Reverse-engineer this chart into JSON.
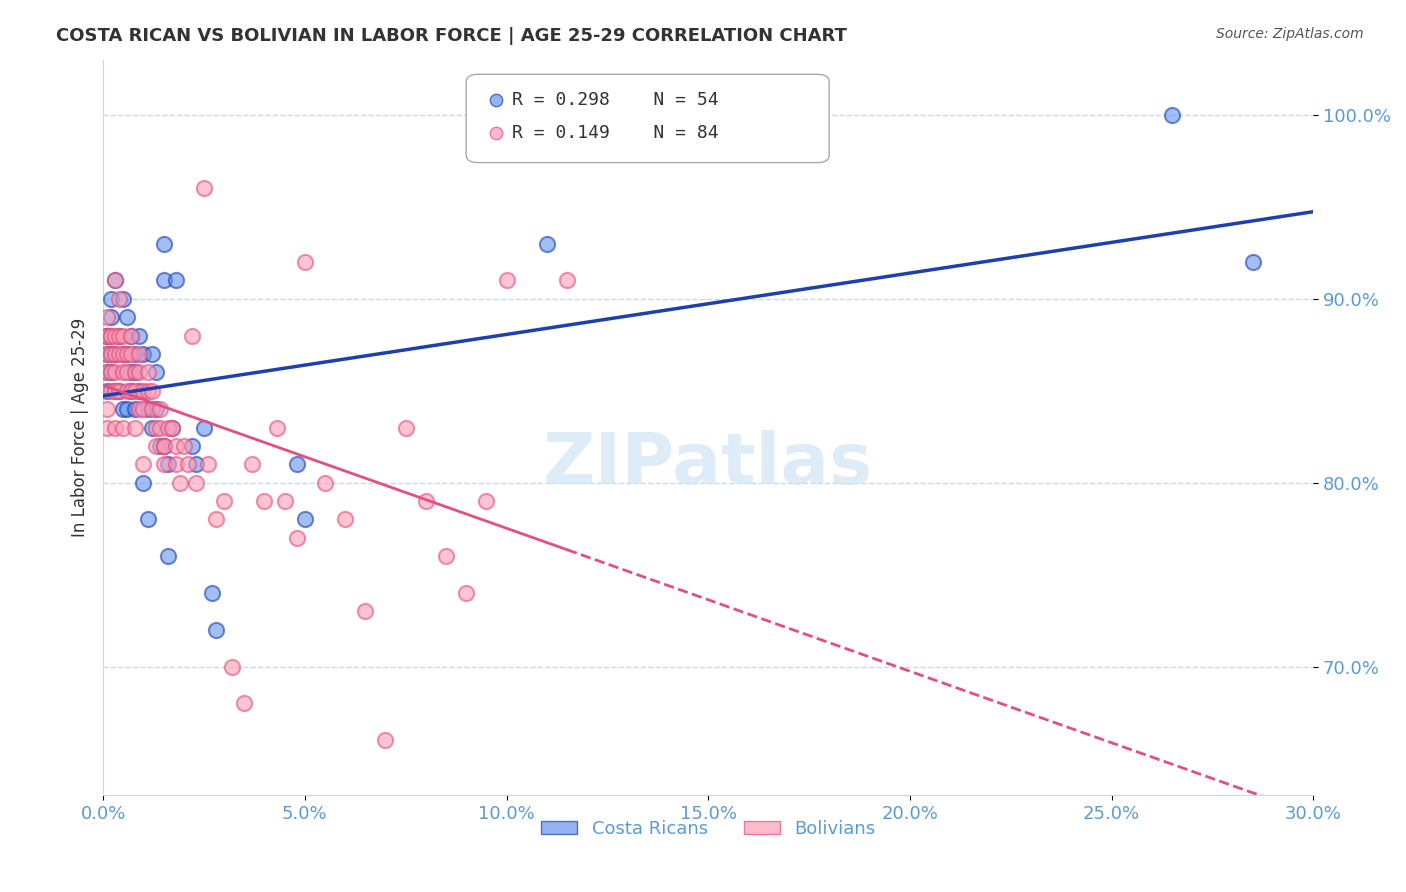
{
  "title": "COSTA RICAN VS BOLIVIAN IN LABOR FORCE | AGE 25-29 CORRELATION CHART",
  "source": "Source: ZipAtlas.com",
  "xlabel": "",
  "ylabel": "In Labor Force | Age 25-29",
  "xlim": [
    0.0,
    0.3
  ],
  "ylim": [
    0.63,
    1.03
  ],
  "yticks": [
    0.7,
    0.8,
    0.9,
    1.0
  ],
  "ytick_labels": [
    "70.0%",
    "80.0%",
    "90.0%",
    "100.0%"
  ],
  "xticks": [
    0.0,
    0.05,
    0.1,
    0.15,
    0.2,
    0.25,
    0.3
  ],
  "xtick_labels": [
    "0.0%",
    "5.0%",
    "10.0%",
    "15.0%",
    "20.0%",
    "25.0%",
    "30.0%"
  ],
  "legend_labels": [
    "Costa Ricans",
    "Bolivians"
  ],
  "legend_r_blue": "R = 0.298",
  "legend_n_blue": "N = 54",
  "legend_r_pink": "R = 0.149",
  "legend_n_pink": "N = 84",
  "blue_color": "#6495ED",
  "pink_color": "#FF9EB5",
  "trend_blue": "#1E40AF",
  "trend_pink": "#E05080",
  "axis_color": "#5B9BD5",
  "grid_color": "#C8D8E8",
  "watermark": "ZIPatlas",
  "costa_rican_x": [
    0.001,
    0.001,
    0.001,
    0.001,
    0.001,
    0.002,
    0.002,
    0.002,
    0.002,
    0.003,
    0.003,
    0.003,
    0.004,
    0.004,
    0.005,
    0.005,
    0.005,
    0.006,
    0.006,
    0.006,
    0.007,
    0.007,
    0.007,
    0.008,
    0.008,
    0.008,
    0.009,
    0.009,
    0.01,
    0.01,
    0.011,
    0.011,
    0.012,
    0.012,
    0.013,
    0.013,
    0.014,
    0.015,
    0.015,
    0.015,
    0.016,
    0.016,
    0.017,
    0.018,
    0.022,
    0.023,
    0.025,
    0.027,
    0.028,
    0.048,
    0.05,
    0.11,
    0.265,
    0.285
  ],
  "costa_rican_y": [
    0.85,
    0.88,
    0.87,
    0.86,
    0.88,
    0.87,
    0.86,
    0.89,
    0.9,
    0.87,
    0.85,
    0.91,
    0.88,
    0.85,
    0.87,
    0.9,
    0.84,
    0.89,
    0.87,
    0.84,
    0.86,
    0.85,
    0.88,
    0.86,
    0.87,
    0.84,
    0.88,
    0.85,
    0.87,
    0.8,
    0.84,
    0.78,
    0.87,
    0.83,
    0.84,
    0.86,
    0.82,
    0.93,
    0.91,
    0.82,
    0.76,
    0.81,
    0.83,
    0.91,
    0.82,
    0.81,
    0.83,
    0.74,
    0.72,
    0.81,
    0.78,
    0.93,
    1.0,
    0.92
  ],
  "bolivian_x": [
    0.001,
    0.001,
    0.001,
    0.001,
    0.001,
    0.001,
    0.001,
    0.002,
    0.002,
    0.002,
    0.002,
    0.002,
    0.003,
    0.003,
    0.003,
    0.003,
    0.003,
    0.003,
    0.004,
    0.004,
    0.004,
    0.004,
    0.005,
    0.005,
    0.005,
    0.005,
    0.006,
    0.006,
    0.006,
    0.007,
    0.007,
    0.007,
    0.008,
    0.008,
    0.008,
    0.009,
    0.009,
    0.009,
    0.01,
    0.01,
    0.01,
    0.011,
    0.011,
    0.012,
    0.012,
    0.013,
    0.013,
    0.014,
    0.014,
    0.015,
    0.015,
    0.015,
    0.016,
    0.017,
    0.018,
    0.018,
    0.019,
    0.02,
    0.021,
    0.022,
    0.023,
    0.025,
    0.026,
    0.028,
    0.03,
    0.032,
    0.035,
    0.037,
    0.04,
    0.043,
    0.045,
    0.048,
    0.05,
    0.055,
    0.06,
    0.065,
    0.07,
    0.075,
    0.08,
    0.085,
    0.09,
    0.095,
    0.1,
    0.115
  ],
  "bolivian_y": [
    0.88,
    0.89,
    0.88,
    0.86,
    0.84,
    0.87,
    0.83,
    0.88,
    0.87,
    0.86,
    0.88,
    0.85,
    0.88,
    0.87,
    0.86,
    0.85,
    0.91,
    0.83,
    0.88,
    0.87,
    0.85,
    0.9,
    0.88,
    0.87,
    0.83,
    0.86,
    0.87,
    0.86,
    0.85,
    0.88,
    0.87,
    0.85,
    0.86,
    0.85,
    0.83,
    0.87,
    0.86,
    0.84,
    0.85,
    0.84,
    0.81,
    0.86,
    0.85,
    0.85,
    0.84,
    0.83,
    0.82,
    0.84,
    0.83,
    0.82,
    0.81,
    0.82,
    0.83,
    0.83,
    0.82,
    0.81,
    0.8,
    0.82,
    0.81,
    0.88,
    0.8,
    0.96,
    0.81,
    0.78,
    0.79,
    0.7,
    0.68,
    0.81,
    0.79,
    0.83,
    0.79,
    0.77,
    0.92,
    0.8,
    0.78,
    0.73,
    0.66,
    0.83,
    0.79,
    0.76,
    0.74,
    0.79,
    0.91,
    0.91
  ]
}
